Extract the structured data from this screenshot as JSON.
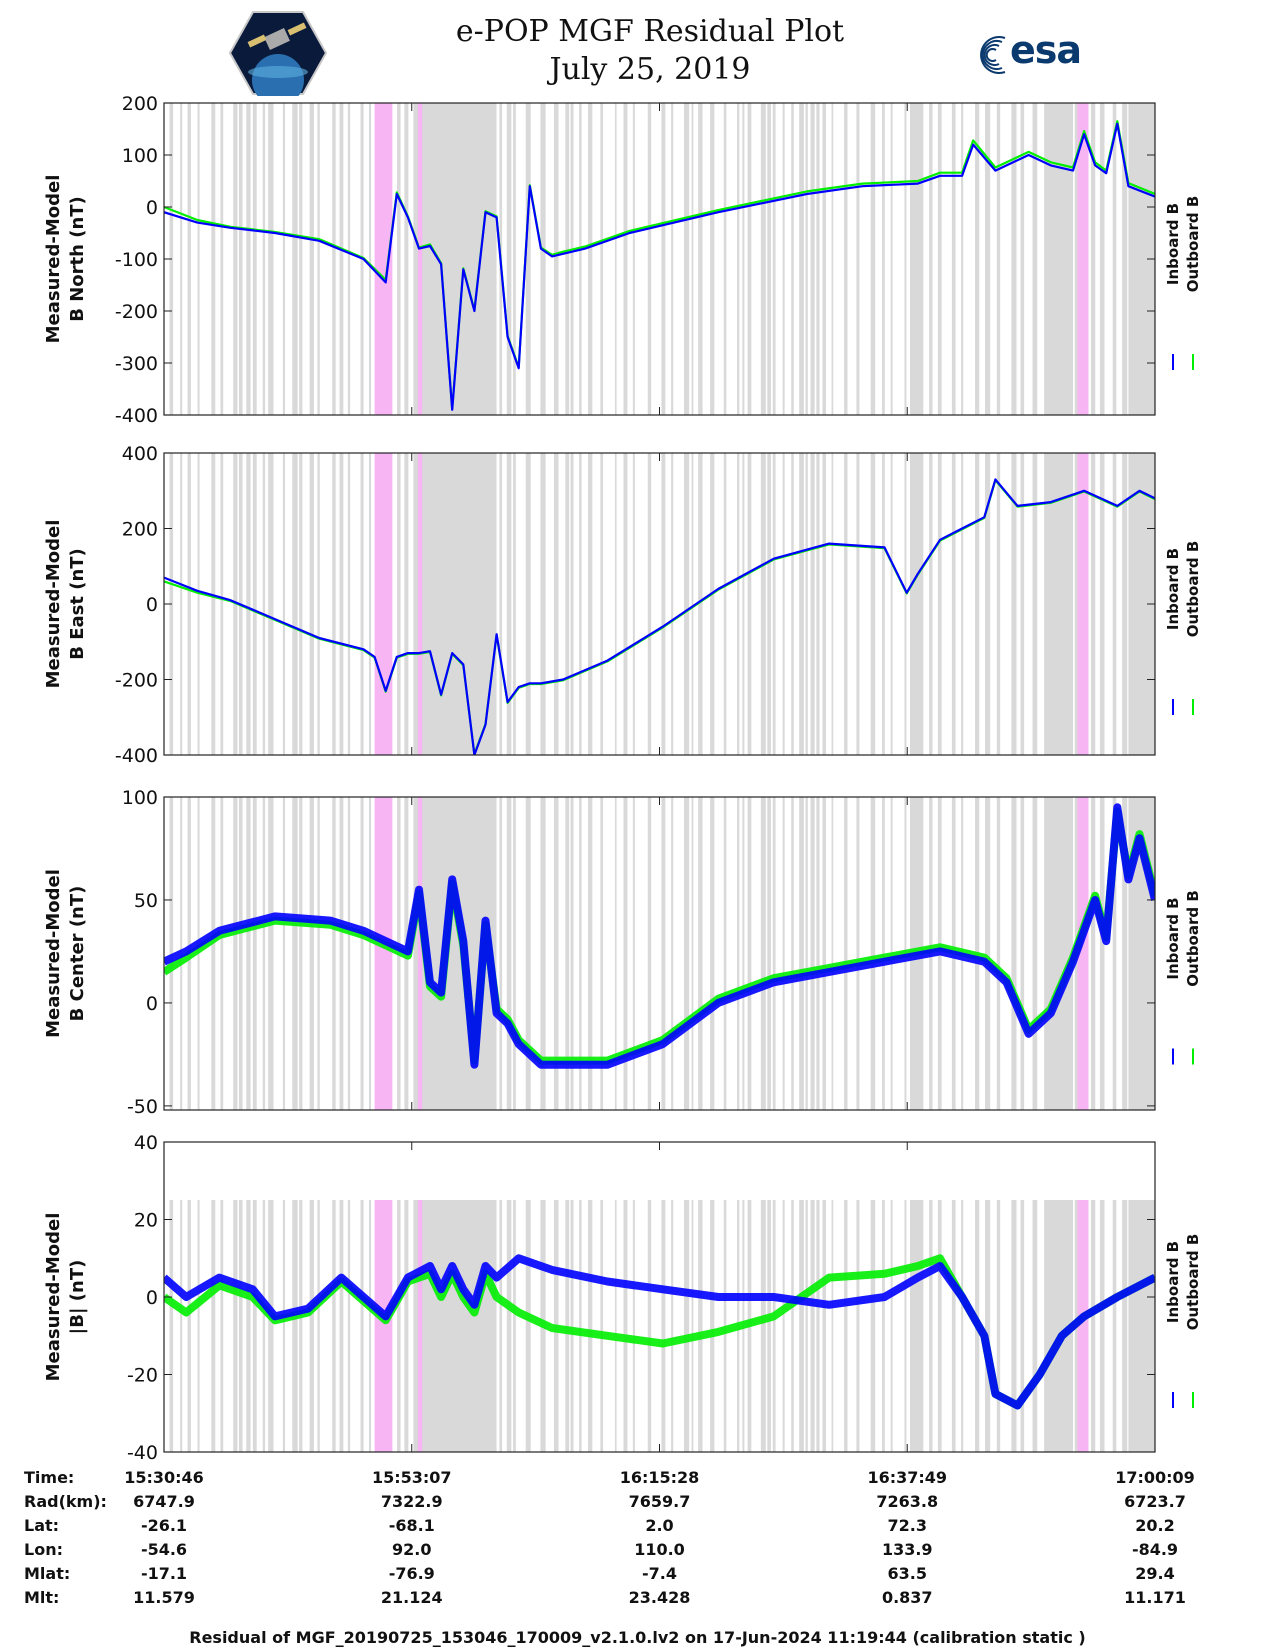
{
  "header": {
    "title_line1": "e-POP MGF Residual Plot",
    "title_line2": "July 25, 2019",
    "logo_left": "cassiope-mission-logo",
    "logo_right": "esa"
  },
  "legend": {
    "inboard": "Inboard B",
    "outboard": "Outboard B",
    "inboard_color": "#0000ff",
    "outboard_color": "#00ee00"
  },
  "colors": {
    "gap_shading": "#d9d9d9",
    "pink_shading": "#f7b5f3"
  },
  "chart_data": [
    {
      "type": "line",
      "ylabel_line1": "Measured-Model",
      "ylabel_line2": "B North (nT)",
      "ylim": [
        -400,
        200
      ],
      "yticks": [
        "200",
        "100",
        "0",
        "-100",
        "-200",
        "-300",
        "-400"
      ],
      "xlim_minutes": [
        0,
        89.4
      ],
      "series": [
        {
          "name": "Inboard B",
          "x": [
            0,
            3,
            6,
            10,
            14,
            18,
            20,
            21,
            22,
            23,
            24,
            25,
            26,
            27,
            28,
            29,
            30,
            31,
            32,
            33,
            34,
            35,
            36,
            38,
            42,
            50,
            58,
            63,
            68,
            70,
            72,
            73,
            75,
            78,
            80,
            82,
            83,
            84,
            85,
            86,
            87,
            89.4
          ],
          "y": [
            -10,
            -30,
            -40,
            -50,
            -65,
            -100,
            -145,
            25,
            -20,
            -80,
            -75,
            -110,
            -390,
            -120,
            -200,
            -10,
            -20,
            -250,
            -310,
            40,
            -80,
            -95,
            -90,
            -80,
            -50,
            -10,
            25,
            40,
            45,
            60,
            60,
            120,
            70,
            100,
            80,
            70,
            140,
            80,
            65,
            160,
            40,
            20
          ]
        },
        {
          "name": "Outboard B",
          "x": [
            0,
            3,
            6,
            10,
            14,
            18,
            20,
            21,
            22,
            23,
            24,
            25,
            26,
            27,
            28,
            29,
            30,
            31,
            32,
            33,
            34,
            35,
            36,
            38,
            42,
            50,
            58,
            63,
            68,
            70,
            72,
            73,
            75,
            78,
            80,
            82,
            83,
            84,
            85,
            86,
            87,
            89.4
          ],
          "y": [
            0,
            -25,
            -38,
            -48,
            -62,
            -98,
            -140,
            28,
            -18,
            -78,
            -72,
            -108,
            -388,
            -118,
            -198,
            -8,
            -18,
            -248,
            -308,
            42,
            -78,
            -92,
            -86,
            -76,
            -46,
            -6,
            30,
            45,
            50,
            66,
            66,
            128,
            76,
            106,
            86,
            76,
            146,
            86,
            70,
            165,
            46,
            25
          ]
        }
      ]
    },
    {
      "type": "line",
      "ylabel_line1": "Measured-Model",
      "ylabel_line2": "B East (nT)",
      "ylim": [
        -400,
        400
      ],
      "yticks": [
        "400",
        "200",
        "0",
        "-200",
        "-400"
      ],
      "xlim_minutes": [
        0,
        89.4
      ],
      "series": [
        {
          "name": "Inboard B",
          "x": [
            0,
            3,
            6,
            10,
            14,
            18,
            19,
            20,
            21,
            22,
            23,
            24,
            25,
            26,
            27,
            28,
            29,
            30,
            31,
            32,
            33,
            34,
            36,
            40,
            45,
            50,
            55,
            60,
            65,
            67,
            68,
            70,
            72,
            74,
            75,
            77,
            80,
            83,
            86,
            88,
            89.4
          ],
          "y": [
            70,
            35,
            10,
            -40,
            -90,
            -120,
            -140,
            -230,
            -140,
            -130,
            -130,
            -125,
            -240,
            -130,
            -160,
            -400,
            -320,
            -80,
            -260,
            -220,
            -210,
            -210,
            -200,
            -150,
            -60,
            40,
            120,
            160,
            150,
            30,
            80,
            170,
            200,
            230,
            330,
            260,
            270,
            300,
            260,
            300,
            280
          ]
        },
        {
          "name": "Outboard B",
          "x": [
            0,
            3,
            6,
            10,
            14,
            18,
            19,
            20,
            21,
            22,
            23,
            24,
            25,
            26,
            27,
            28,
            29,
            30,
            31,
            32,
            33,
            34,
            36,
            40,
            45,
            50,
            55,
            60,
            65,
            67,
            68,
            70,
            72,
            74,
            75,
            77,
            80,
            83,
            86,
            88,
            89.4
          ],
          "y": [
            60,
            30,
            8,
            -42,
            -92,
            -122,
            -142,
            -232,
            -142,
            -132,
            -132,
            -127,
            -242,
            -132,
            -162,
            -398,
            -318,
            -82,
            -262,
            -222,
            -212,
            -212,
            -202,
            -152,
            -62,
            38,
            118,
            158,
            148,
            28,
            78,
            168,
            198,
            228,
            328,
            258,
            268,
            298,
            258,
            298,
            278
          ]
        }
      ]
    },
    {
      "type": "line",
      "ylabel_line1": "Measured-Model",
      "ylabel_line2": "B Center (nT)",
      "ylim": [
        -52,
        100
      ],
      "yticks": [
        "100",
        "50",
        "0",
        "-50"
      ],
      "xlim_minutes": [
        0,
        89.4
      ],
      "series": [
        {
          "name": "Inboard B",
          "x": [
            0,
            2,
            5,
            10,
            15,
            18,
            20,
            22,
            23,
            24,
            25,
            26,
            27,
            28,
            29,
            30,
            31,
            32,
            34,
            40,
            45,
            50,
            55,
            60,
            65,
            70,
            74,
            76,
            78,
            80,
            82,
            84,
            85,
            86,
            87,
            88,
            89.4
          ],
          "y": [
            20,
            25,
            35,
            42,
            40,
            35,
            30,
            25,
            55,
            10,
            5,
            60,
            30,
            -30,
            40,
            -5,
            -10,
            -20,
            -30,
            -30,
            -20,
            0,
            10,
            15,
            20,
            25,
            20,
            10,
            -15,
            -5,
            20,
            50,
            30,
            95,
            60,
            80,
            50
          ]
        },
        {
          "name": "Outboard B",
          "x": [
            0,
            2,
            5,
            10,
            15,
            18,
            20,
            22,
            23,
            24,
            25,
            26,
            27,
            28,
            29,
            30,
            31,
            32,
            34,
            40,
            45,
            50,
            55,
            60,
            65,
            70,
            74,
            76,
            78,
            80,
            82,
            84,
            85,
            86,
            87,
            88,
            89.4
          ],
          "y": [
            15,
            22,
            33,
            40,
            38,
            33,
            28,
            23,
            53,
            8,
            3,
            58,
            28,
            -28,
            38,
            -3,
            -8,
            -18,
            -28,
            -28,
            -18,
            2,
            12,
            17,
            22,
            27,
            22,
            12,
            -13,
            -3,
            22,
            52,
            32,
            93,
            62,
            82,
            52
          ]
        }
      ]
    },
    {
      "type": "line",
      "ylabel_line1": "Measured-Model",
      "ylabel_line2": "|B| (nT)",
      "ylim": [
        -40,
        40
      ],
      "yticks": [
        "40",
        "20",
        "0",
        "-20",
        "-40"
      ],
      "xlim_minutes": [
        0,
        89.4
      ],
      "series": [
        {
          "name": "Inboard B",
          "x": [
            0,
            2,
            5,
            8,
            10,
            13,
            16,
            18,
            20,
            22,
            24,
            25,
            26,
            27,
            28,
            29,
            30,
            32,
            35,
            40,
            45,
            50,
            55,
            60,
            65,
            68,
            70,
            72,
            74,
            75,
            77,
            79,
            81,
            83,
            86,
            89.4
          ],
          "y": [
            5,
            0,
            5,
            2,
            -5,
            -3,
            5,
            0,
            -5,
            5,
            8,
            2,
            8,
            2,
            -2,
            8,
            5,
            10,
            7,
            4,
            2,
            0,
            0,
            -2,
            0,
            5,
            8,
            0,
            -10,
            -25,
            -28,
            -20,
            -10,
            -5,
            0,
            5
          ]
        },
        {
          "name": "Outboard B",
          "x": [
            0,
            2,
            5,
            8,
            10,
            13,
            16,
            18,
            20,
            22,
            24,
            25,
            26,
            27,
            28,
            29,
            30,
            32,
            35,
            40,
            45,
            50,
            55,
            60,
            65,
            68,
            70,
            72,
            74,
            75,
            77,
            79,
            81,
            83,
            86,
            89.4
          ],
          "y": [
            0,
            -4,
            3,
            0,
            -6,
            -4,
            4,
            -1,
            -6,
            4,
            6,
            0,
            6,
            0,
            -4,
            6,
            0,
            -4,
            -8,
            -10,
            -12,
            -9,
            -5,
            5,
            6,
            8,
            10,
            0,
            -10,
            -25,
            -28,
            -20,
            -10,
            -5,
            0,
            5
          ]
        }
      ]
    }
  ],
  "x_axis": {
    "tick_minutes": [
      0,
      22.35,
      44.7,
      67.05,
      89.4
    ]
  },
  "info_table": {
    "rows": [
      {
        "label": "Time:",
        "values": [
          "15:30:46",
          "15:53:07",
          "16:15:28",
          "16:37:49",
          "17:00:09"
        ]
      },
      {
        "label": "Rad(km):",
        "values": [
          "6747.9",
          "7322.9",
          "7659.7",
          "7263.8",
          "6723.7"
        ]
      },
      {
        "label": "Lat:",
        "values": [
          "-26.1",
          "-68.1",
          "2.0",
          "72.3",
          "20.2"
        ]
      },
      {
        "label": "Lon:",
        "values": [
          "-54.6",
          "92.0",
          "110.0",
          "133.9",
          "-84.9"
        ]
      },
      {
        "label": "Mlat:",
        "values": [
          "-17.1",
          "-76.9",
          "-7.4",
          "63.5",
          "29.4"
        ]
      },
      {
        "label": "Mlt:",
        "values": [
          "11.579",
          "21.124",
          "23.428",
          "0.837",
          "11.171"
        ]
      }
    ]
  },
  "footer": {
    "text": "Residual of MGF_20190725_153046_170009_v2.1.0.lv2 on 17-Jun-2024 11:19:44 (calibration static )"
  }
}
